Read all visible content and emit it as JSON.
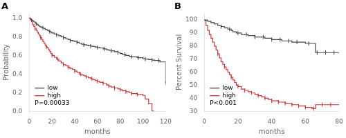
{
  "chart_data": [
    {
      "type": "step",
      "title": "A",
      "xlabel": "months",
      "ylabel": "Probability",
      "xlim": [
        0,
        120
      ],
      "ylim": [
        0.0,
        1.05
      ],
      "xticks": [
        0,
        20,
        40,
        60,
        80,
        100,
        120
      ],
      "yticks": [
        {
          "value": 0.0,
          "label": "0.0"
        },
        0.2,
        0.4,
        0.6,
        0.8,
        {
          "value": 1.0,
          "label": "1.0"
        }
      ],
      "grid": false,
      "legend": "lower left",
      "annotations": [
        "P=0.00033"
      ],
      "series": [
        {
          "name": "low",
          "color": "#444444",
          "x": [
            0,
            1,
            2,
            3,
            4,
            5,
            6,
            7,
            8,
            9,
            10,
            11,
            12,
            13,
            14,
            15,
            16,
            17,
            18,
            19,
            20,
            22,
            24,
            26,
            28,
            30,
            32,
            34,
            36,
            38,
            40,
            42,
            44,
            46,
            48,
            50,
            52,
            54,
            56,
            58,
            60,
            62,
            65,
            68,
            70,
            72,
            75,
            78,
            80,
            82,
            85,
            88,
            90,
            95,
            100,
            102,
            105,
            108,
            110,
            115,
            120
          ],
          "values": [
            1.0,
            0.99,
            0.98,
            0.97,
            0.96,
            0.95,
            0.94,
            0.93,
            0.92,
            0.91,
            0.905,
            0.9,
            0.895,
            0.89,
            0.88,
            0.875,
            0.87,
            0.86,
            0.855,
            0.85,
            0.84,
            0.83,
            0.82,
            0.81,
            0.8,
            0.79,
            0.78,
            0.77,
            0.76,
            0.755,
            0.75,
            0.74,
            0.73,
            0.72,
            0.715,
            0.71,
            0.705,
            0.7,
            0.695,
            0.69,
            0.685,
            0.68,
            0.67,
            0.66,
            0.655,
            0.65,
            0.64,
            0.63,
            0.62,
            0.61,
            0.6,
            0.59,
            0.585,
            0.575,
            0.565,
            0.56,
            0.555,
            0.55,
            0.545,
            0.53,
            0.3
          ],
          "censor_x": [
            6,
            12,
            18,
            24,
            30,
            36,
            42,
            48,
            54,
            60,
            66,
            72,
            78,
            84,
            90,
            96,
            102,
            108,
            114,
            120
          ],
          "censor_y": [
            0.94,
            0.895,
            0.855,
            0.82,
            0.79,
            0.76,
            0.74,
            0.715,
            0.7,
            0.685,
            0.67,
            0.65,
            0.63,
            0.61,
            0.585,
            0.575,
            0.56,
            0.55,
            0.545,
            0.3
          ]
        },
        {
          "name": "high",
          "color": "#cc3333",
          "x": [
            0,
            1,
            2,
            3,
            4,
            5,
            6,
            7,
            8,
            9,
            10,
            11,
            12,
            13,
            14,
            15,
            16,
            17,
            18,
            19,
            20,
            22,
            24,
            26,
            28,
            30,
            32,
            34,
            36,
            38,
            40,
            42,
            44,
            46,
            48,
            50,
            52,
            54,
            56,
            58,
            60,
            62,
            65,
            68,
            70,
            72,
            75,
            78,
            80,
            82,
            85,
            88,
            90,
            95,
            100,
            102,
            105,
            108,
            110
          ],
          "values": [
            1.0,
            0.98,
            0.96,
            0.93,
            0.91,
            0.89,
            0.87,
            0.85,
            0.83,
            0.81,
            0.79,
            0.77,
            0.75,
            0.73,
            0.71,
            0.69,
            0.68,
            0.66,
            0.64,
            0.62,
            0.6,
            0.58,
            0.56,
            0.54,
            0.52,
            0.5,
            0.49,
            0.47,
            0.46,
            0.45,
            0.43,
            0.42,
            0.4,
            0.39,
            0.38,
            0.37,
            0.36,
            0.35,
            0.34,
            0.33,
            0.32,
            0.31,
            0.3,
            0.28,
            0.27,
            0.26,
            0.25,
            0.24,
            0.23,
            0.22,
            0.21,
            0.2,
            0.19,
            0.18,
            0.17,
            0.13,
            0.08,
            0.0,
            0.0
          ],
          "censor_x": [
            5,
            10,
            15,
            20,
            25,
            30,
            35,
            40,
            45,
            50,
            55,
            60,
            65,
            70,
            75,
            80,
            85,
            90,
            95
          ],
          "censor_y": [
            0.89,
            0.79,
            0.69,
            0.6,
            0.56,
            0.5,
            0.47,
            0.43,
            0.4,
            0.37,
            0.35,
            0.32,
            0.3,
            0.27,
            0.25,
            0.23,
            0.21,
            0.19,
            0.18
          ]
        }
      ]
    },
    {
      "type": "step",
      "title": "B",
      "xlabel": "months",
      "ylabel": "Percent Survival",
      "xlim": [
        0,
        80
      ],
      "ylim": [
        30,
        105
      ],
      "xticks": [
        0,
        20,
        40,
        60,
        80
      ],
      "yticks": [
        30,
        40,
        50,
        60,
        70,
        80,
        90,
        100
      ],
      "grid": false,
      "legend": "lower left",
      "annotations": [
        "P<0.001"
      ],
      "series": [
        {
          "name": "low",
          "color": "#444444",
          "x": [
            0,
            1,
            2,
            3,
            4,
            5,
            6,
            7,
            8,
            9,
            10,
            11,
            12,
            13,
            14,
            15,
            16,
            17,
            18,
            19,
            20,
            22,
            24,
            26,
            28,
            30,
            32,
            34,
            36,
            38,
            40,
            42,
            44,
            46,
            48,
            50,
            52,
            54,
            56,
            58,
            60,
            62,
            63,
            65,
            66,
            68,
            70,
            72,
            74,
            76,
            78,
            80
          ],
          "values": [
            100,
            100,
            99,
            99,
            98,
            98,
            97,
            97,
            96,
            96,
            95,
            95,
            94,
            94,
            93,
            93,
            92,
            91,
            91,
            90,
            90,
            89,
            89,
            88,
            88,
            87,
            87,
            87,
            86,
            86,
            85,
            85,
            85,
            84,
            84,
            84,
            83,
            83,
            83,
            83,
            82,
            82,
            82,
            82,
            75,
            75,
            75,
            75,
            75,
            75,
            75,
            75
          ],
          "censor_x": [
            10,
            15,
            20,
            25,
            30,
            35,
            40,
            45,
            50,
            55,
            62,
            67,
            72,
            77
          ],
          "censor_y": [
            95,
            93,
            90,
            89,
            87,
            87,
            85,
            85,
            84,
            83,
            82,
            75,
            75,
            75
          ]
        },
        {
          "name": "high",
          "color": "#cc3333",
          "x": [
            0,
            1,
            2,
            3,
            4,
            5,
            6,
            7,
            8,
            9,
            10,
            11,
            12,
            13,
            14,
            15,
            16,
            17,
            18,
            19,
            20,
            22,
            24,
            26,
            28,
            30,
            32,
            34,
            36,
            38,
            40,
            42,
            44,
            46,
            48,
            50,
            52,
            54,
            56,
            58,
            60,
            62,
            63,
            64,
            65,
            66,
            68,
            70,
            72,
            74,
            76,
            78,
            80
          ],
          "values": [
            100,
            96,
            92,
            89,
            86,
            83,
            80,
            77,
            74,
            71,
            68,
            66,
            64,
            62,
            60,
            58,
            56,
            54,
            52,
            50,
            49,
            47,
            46,
            45,
            44,
            43,
            42,
            41,
            40,
            39,
            38,
            38,
            37,
            37,
            36,
            36,
            35,
            35,
            34,
            34,
            33,
            33,
            33,
            32,
            32,
            35,
            35,
            35,
            35,
            35,
            35,
            35,
            35
          ],
          "censor_x": [
            8,
            12,
            16,
            20,
            24,
            28,
            32,
            36,
            40,
            44,
            48,
            52,
            56,
            60,
            65,
            70,
            75
          ],
          "censor_y": [
            74,
            64,
            56,
            49,
            46,
            44,
            42,
            40,
            38,
            37,
            36,
            35,
            34,
            33,
            32,
            35,
            35
          ]
        }
      ]
    }
  ]
}
